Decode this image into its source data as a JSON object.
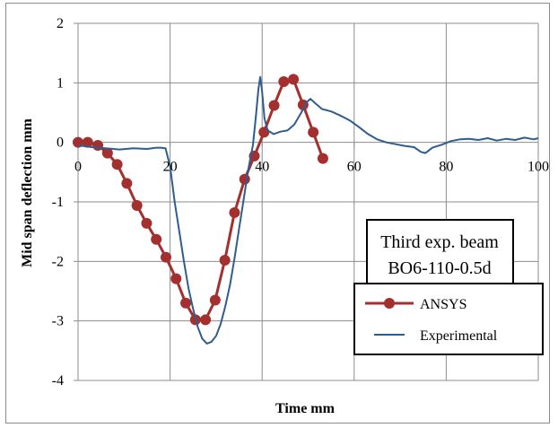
{
  "chart_data": {
    "type": "line",
    "xlabel": "Time mm",
    "ylabel": "Mid span deflection mm",
    "xlim": [
      0,
      100
    ],
    "ylim": [
      -4,
      2
    ],
    "x_ticks": [
      0,
      20,
      40,
      60,
      80,
      100
    ],
    "y_ticks": [
      2,
      1,
      0,
      -1,
      -2,
      -3,
      -4
    ],
    "grid": true,
    "legend_position": "right",
    "annotation": {
      "line1": "Third exp. beam",
      "line2": "BO6-110-0.5d"
    },
    "series": [
      {
        "name": "ANSYS",
        "color": "#a3302e",
        "marker": "circle",
        "points": [
          [
            0,
            0.0
          ],
          [
            2.1,
            0.0
          ],
          [
            4.3,
            -0.05
          ],
          [
            6.4,
            -0.18
          ],
          [
            8.5,
            -0.37
          ],
          [
            10.6,
            -0.69
          ],
          [
            12.8,
            -1.06
          ],
          [
            14.9,
            -1.36
          ],
          [
            17.0,
            -1.63
          ],
          [
            19.1,
            -1.93
          ],
          [
            21.3,
            -2.29
          ],
          [
            23.4,
            -2.7
          ],
          [
            25.5,
            -2.98
          ],
          [
            27.7,
            -2.98
          ],
          [
            29.8,
            -2.65
          ],
          [
            31.9,
            -1.98
          ],
          [
            34.0,
            -1.18
          ],
          [
            36.2,
            -0.62
          ],
          [
            38.3,
            -0.23
          ],
          [
            40.4,
            0.17
          ],
          [
            42.6,
            0.62
          ],
          [
            44.7,
            1.02
          ],
          [
            46.8,
            1.06
          ],
          [
            48.9,
            0.63
          ],
          [
            51.1,
            0.17
          ],
          [
            53.2,
            -0.27
          ]
        ]
      },
      {
        "name": "Experimental",
        "color": "#2e5d8e",
        "marker": "none",
        "points": [
          [
            0,
            -0.05
          ],
          [
            3,
            -0.08
          ],
          [
            6,
            -0.1
          ],
          [
            9,
            -0.12
          ],
          [
            12,
            -0.1
          ],
          [
            15,
            -0.11
          ],
          [
            17,
            -0.09
          ],
          [
            18,
            -0.09
          ],
          [
            19,
            -0.1
          ],
          [
            20,
            -0.4
          ],
          [
            21,
            -1.0
          ],
          [
            22,
            -1.5
          ],
          [
            23,
            -2.0
          ],
          [
            24,
            -2.45
          ],
          [
            25,
            -2.8
          ],
          [
            26,
            -3.1
          ],
          [
            27,
            -3.3
          ],
          [
            28,
            -3.38
          ],
          [
            29,
            -3.35
          ],
          [
            30,
            -3.25
          ],
          [
            31,
            -3.05
          ],
          [
            32,
            -2.75
          ],
          [
            33,
            -2.4
          ],
          [
            34,
            -1.95
          ],
          [
            35,
            -1.45
          ],
          [
            36,
            -0.95
          ],
          [
            37,
            -0.45
          ],
          [
            38,
            -0.05
          ],
          [
            38.6,
            0.4
          ],
          [
            39.2,
            0.9
          ],
          [
            39.6,
            1.1
          ],
          [
            40.0,
            0.85
          ],
          [
            40.5,
            0.4
          ],
          [
            41.2,
            0.2
          ],
          [
            42.5,
            0.14
          ],
          [
            44,
            0.18
          ],
          [
            45.5,
            0.2
          ],
          [
            47,
            0.3
          ],
          [
            48.5,
            0.5
          ],
          [
            49.7,
            0.68
          ],
          [
            50.5,
            0.73
          ],
          [
            51.5,
            0.66
          ],
          [
            53,
            0.56
          ],
          [
            55,
            0.52
          ],
          [
            57,
            0.45
          ],
          [
            59,
            0.37
          ],
          [
            61,
            0.26
          ],
          [
            63,
            0.14
          ],
          [
            65,
            0.05
          ],
          [
            67,
            0.0
          ],
          [
            69,
            -0.03
          ],
          [
            71,
            -0.06
          ],
          [
            73,
            -0.08
          ],
          [
            74.5,
            -0.16
          ],
          [
            75.5,
            -0.18
          ],
          [
            77,
            -0.09
          ],
          [
            79,
            -0.04
          ],
          [
            81,
            0.02
          ],
          [
            83,
            0.05
          ],
          [
            85,
            0.06
          ],
          [
            87,
            0.04
          ],
          [
            89,
            0.07
          ],
          [
            91,
            0.03
          ],
          [
            93,
            0.06
          ],
          [
            95,
            0.04
          ],
          [
            97,
            0.08
          ],
          [
            99,
            0.05
          ],
          [
            100,
            0.07
          ]
        ]
      }
    ]
  }
}
